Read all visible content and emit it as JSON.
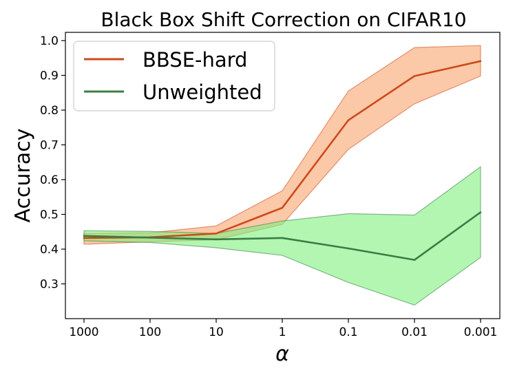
{
  "chart_data": {
    "type": "line",
    "title": "Black Box Shift Correction on CIFAR10",
    "xlabel": "α",
    "ylabel": "Accuracy",
    "categories": [
      "1000",
      "100",
      "10",
      "1",
      "0.1",
      "0.01",
      "0.001"
    ],
    "ylim": [
      0.2,
      1.0
    ],
    "yticks": [
      0.3,
      0.4,
      0.5,
      0.6,
      0.7,
      0.8,
      0.9,
      1.0
    ],
    "ytick_labels": [
      "0.3",
      "0.4",
      "0.5",
      "0.6",
      "0.7",
      "0.8",
      "0.9",
      "1.0"
    ],
    "legend_position": "top-left",
    "grid": false,
    "series": [
      {
        "name": "BBSE-hard",
        "color": "#cc4a1a",
        "fill_color": "#f9a36e",
        "values": [
          0.432,
          0.434,
          0.445,
          0.519,
          0.771,
          0.898,
          0.941
        ],
        "lower": [
          0.414,
          0.421,
          0.427,
          0.471,
          0.687,
          0.818,
          0.898
        ],
        "upper": [
          0.445,
          0.447,
          0.467,
          0.568,
          0.855,
          0.98,
          0.986
        ]
      },
      {
        "name": "Unweighted",
        "color": "#3a7d44",
        "fill_color": "#7ff07f",
        "values": [
          0.438,
          0.433,
          0.428,
          0.432,
          0.402,
          0.369,
          0.506
        ],
        "lower": [
          0.424,
          0.419,
          0.404,
          0.382,
          0.304,
          0.239,
          0.376
        ],
        "upper": [
          0.453,
          0.451,
          0.445,
          0.481,
          0.502,
          0.498,
          0.637
        ]
      }
    ]
  }
}
